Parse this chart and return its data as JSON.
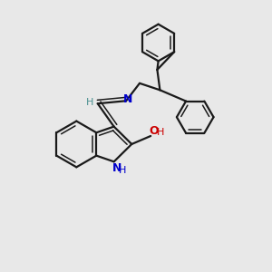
{
  "background_color": "#e8e8e8",
  "bond_color": "#1a1a1a",
  "N_color": "#0000cc",
  "O_color": "#cc0000",
  "H_imine_color": "#4a9090",
  "figsize": [
    3.0,
    3.0
  ],
  "dpi": 100,
  "lw": 1.6,
  "lw_inner": 1.1,
  "xlim": [
    0.0,
    1.0
  ],
  "ylim": [
    0.0,
    1.0
  ]
}
